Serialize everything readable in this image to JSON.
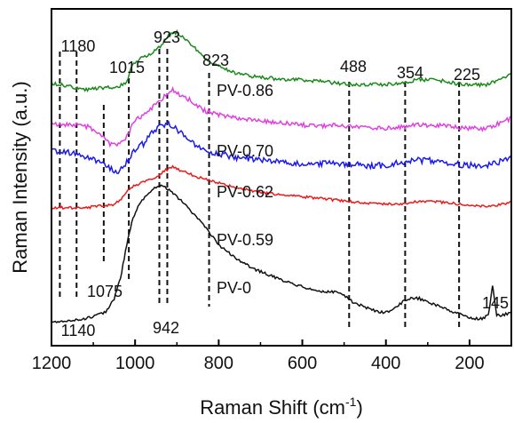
{
  "chart_data": {
    "type": "line",
    "xlabel": "Raman Shift (cm",
    "xlabel_sup": "-1",
    "xlabel_end": ")",
    "ylabel": "Raman Intensity (a.u.)",
    "xlim": [
      1200,
      100
    ],
    "x_reversed": true,
    "y_ticks_shown": false,
    "x_ticks": [
      1200,
      1000,
      800,
      600,
      400,
      200
    ],
    "x_tick_labels": [
      "1200",
      "1000",
      "800",
      "600",
      "400",
      "200"
    ],
    "reference_lines": [
      1180,
      1140,
      1075,
      1015,
      942,
      923,
      823,
      488,
      354,
      225
    ],
    "peak_labels": [
      {
        "text": "1180",
        "x": 1180
      },
      {
        "text": "1140",
        "x": 1140
      },
      {
        "text": "1075",
        "x": 1075
      },
      {
        "text": "1015",
        "x": 1015
      },
      {
        "text": "942",
        "x": 942
      },
      {
        "text": "923",
        "x": 923
      },
      {
        "text": "823",
        "x": 823
      },
      {
        "text": "488",
        "x": 488
      },
      {
        "text": "354",
        "x": 354
      },
      {
        "text": "225",
        "x": 225
      },
      {
        "text": "145",
        "x": 145
      }
    ],
    "series": [
      {
        "name": "PV-0.86",
        "color": "#1a8a1a",
        "points": [
          [
            1200,
            0.78
          ],
          [
            1160,
            0.77
          ],
          [
            1120,
            0.76
          ],
          [
            1080,
            0.765
          ],
          [
            1040,
            0.77
          ],
          [
            1020,
            0.78
          ],
          [
            1010,
            0.83
          ],
          [
            990,
            0.85
          ],
          [
            970,
            0.86
          ],
          [
            940,
            0.89
          ],
          [
            920,
            0.92
          ],
          [
            900,
            0.93
          ],
          [
            880,
            0.91
          ],
          [
            860,
            0.89
          ],
          [
            840,
            0.86
          ],
          [
            820,
            0.84
          ],
          [
            800,
            0.83
          ],
          [
            760,
            0.81
          ],
          [
            720,
            0.8
          ],
          [
            680,
            0.795
          ],
          [
            640,
            0.79
          ],
          [
            600,
            0.79
          ],
          [
            560,
            0.785
          ],
          [
            520,
            0.78
          ],
          [
            480,
            0.775
          ],
          [
            440,
            0.775
          ],
          [
            400,
            0.775
          ],
          [
            360,
            0.78
          ],
          [
            320,
            0.79
          ],
          [
            280,
            0.79
          ],
          [
            240,
            0.78
          ],
          [
            200,
            0.775
          ],
          [
            160,
            0.775
          ],
          [
            130,
            0.79
          ],
          [
            110,
            0.8
          ],
          [
            100,
            0.81
          ]
        ]
      },
      {
        "name": "PV-0.70",
        "color": "#e040e0",
        "points": [
          [
            1200,
            0.66
          ],
          [
            1170,
            0.655
          ],
          [
            1140,
            0.655
          ],
          [
            1110,
            0.65
          ],
          [
            1080,
            0.62
          ],
          [
            1060,
            0.6
          ],
          [
            1040,
            0.6
          ],
          [
            1020,
            0.62
          ],
          [
            1000,
            0.67
          ],
          [
            970,
            0.69
          ],
          [
            950,
            0.72
          ],
          [
            930,
            0.74
          ],
          [
            910,
            0.76
          ],
          [
            890,
            0.74
          ],
          [
            870,
            0.73
          ],
          [
            840,
            0.7
          ],
          [
            800,
            0.685
          ],
          [
            760,
            0.675
          ],
          [
            720,
            0.67
          ],
          [
            680,
            0.665
          ],
          [
            640,
            0.66
          ],
          [
            600,
            0.655
          ],
          [
            560,
            0.65
          ],
          [
            520,
            0.655
          ],
          [
            480,
            0.65
          ],
          [
            440,
            0.645
          ],
          [
            400,
            0.645
          ],
          [
            360,
            0.65
          ],
          [
            320,
            0.655
          ],
          [
            280,
            0.655
          ],
          [
            240,
            0.65
          ],
          [
            200,
            0.645
          ],
          [
            160,
            0.645
          ],
          [
            130,
            0.66
          ],
          [
            100,
            0.675
          ]
        ]
      },
      {
        "name": "PV-0.62",
        "color": "#1a1aee",
        "points": [
          [
            1200,
            0.58
          ],
          [
            1170,
            0.575
          ],
          [
            1140,
            0.57
          ],
          [
            1110,
            0.56
          ],
          [
            1080,
            0.54
          ],
          [
            1060,
            0.525
          ],
          [
            1040,
            0.52
          ],
          [
            1020,
            0.545
          ],
          [
            1000,
            0.58
          ],
          [
            980,
            0.6
          ],
          [
            960,
            0.63
          ],
          [
            940,
            0.65
          ],
          [
            920,
            0.66
          ],
          [
            900,
            0.64
          ],
          [
            880,
            0.62
          ],
          [
            860,
            0.6
          ],
          [
            840,
            0.585
          ],
          [
            800,
            0.57
          ],
          [
            760,
            0.56
          ],
          [
            720,
            0.555
          ],
          [
            680,
            0.55
          ],
          [
            640,
            0.545
          ],
          [
            600,
            0.54
          ],
          [
            560,
            0.54
          ],
          [
            520,
            0.54
          ],
          [
            480,
            0.54
          ],
          [
            440,
            0.535
          ],
          [
            400,
            0.535
          ],
          [
            360,
            0.545
          ],
          [
            320,
            0.55
          ],
          [
            280,
            0.55
          ],
          [
            240,
            0.54
          ],
          [
            200,
            0.535
          ],
          [
            160,
            0.535
          ],
          [
            130,
            0.545
          ],
          [
            100,
            0.56
          ]
        ]
      },
      {
        "name": "PV-0.59",
        "color": "#ee1a1a",
        "points": [
          [
            1200,
            0.41
          ],
          [
            1160,
            0.41
          ],
          [
            1120,
            0.41
          ],
          [
            1080,
            0.415
          ],
          [
            1050,
            0.42
          ],
          [
            1030,
            0.44
          ],
          [
            1010,
            0.47
          ],
          [
            990,
            0.48
          ],
          [
            970,
            0.49
          ],
          [
            950,
            0.5
          ],
          [
            930,
            0.52
          ],
          [
            910,
            0.53
          ],
          [
            890,
            0.52
          ],
          [
            870,
            0.51
          ],
          [
            850,
            0.5
          ],
          [
            820,
            0.49
          ],
          [
            780,
            0.475
          ],
          [
            740,
            0.465
          ],
          [
            700,
            0.455
          ],
          [
            660,
            0.45
          ],
          [
            620,
            0.445
          ],
          [
            580,
            0.44
          ],
          [
            540,
            0.435
          ],
          [
            500,
            0.43
          ],
          [
            460,
            0.425
          ],
          [
            420,
            0.42
          ],
          [
            380,
            0.42
          ],
          [
            340,
            0.425
          ],
          [
            300,
            0.43
          ],
          [
            260,
            0.425
          ],
          [
            220,
            0.42
          ],
          [
            180,
            0.415
          ],
          [
            150,
            0.415
          ],
          [
            120,
            0.42
          ],
          [
            100,
            0.43
          ]
        ]
      },
      {
        "name": "PV-0",
        "color": "#111111",
        "points": [
          [
            1200,
            0.07
          ],
          [
            1160,
            0.075
          ],
          [
            1120,
            0.08
          ],
          [
            1090,
            0.09
          ],
          [
            1070,
            0.1
          ],
          [
            1050,
            0.14
          ],
          [
            1035,
            0.2
          ],
          [
            1020,
            0.3
          ],
          [
            1005,
            0.38
          ],
          [
            990,
            0.42
          ],
          [
            970,
            0.45
          ],
          [
            950,
            0.47
          ],
          [
            935,
            0.475
          ],
          [
            915,
            0.46
          ],
          [
            890,
            0.43
          ],
          [
            860,
            0.39
          ],
          [
            830,
            0.35
          ],
          [
            800,
            0.3
          ],
          [
            760,
            0.26
          ],
          [
            720,
            0.23
          ],
          [
            680,
            0.21
          ],
          [
            640,
            0.19
          ],
          [
            600,
            0.175
          ],
          [
            560,
            0.16
          ],
          [
            520,
            0.16
          ],
          [
            500,
            0.15
          ],
          [
            480,
            0.13
          ],
          [
            460,
            0.12
          ],
          [
            440,
            0.11
          ],
          [
            420,
            0.1
          ],
          [
            400,
            0.1
          ],
          [
            380,
            0.11
          ],
          [
            360,
            0.13
          ],
          [
            340,
            0.14
          ],
          [
            320,
            0.14
          ],
          [
            300,
            0.13
          ],
          [
            280,
            0.12
          ],
          [
            260,
            0.11
          ],
          [
            240,
            0.1
          ],
          [
            225,
            0.1
          ],
          [
            210,
            0.09
          ],
          [
            190,
            0.08
          ],
          [
            170,
            0.08
          ],
          [
            155,
            0.09
          ],
          [
            148,
            0.15
          ],
          [
            145,
            0.18
          ],
          [
            142,
            0.15
          ],
          [
            135,
            0.09
          ],
          [
            120,
            0.09
          ],
          [
            100,
            0.1
          ]
        ]
      }
    ],
    "series_label_x": 805
  }
}
